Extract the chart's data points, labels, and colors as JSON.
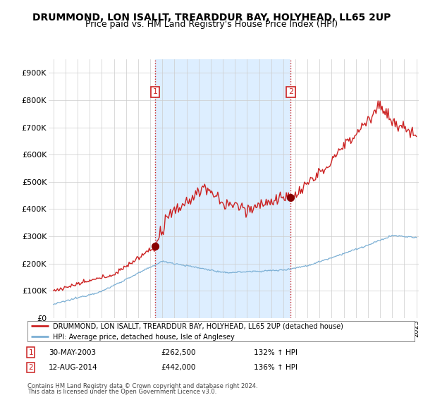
{
  "title": "DRUMMOND, LON ISALLT, TREARDDUR BAY, HOLYHEAD, LL65 2UP",
  "subtitle": "Price paid vs. HM Land Registry's House Price Index (HPI)",
  "title_fontsize": 10,
  "subtitle_fontsize": 9,
  "ylim": [
    0,
    950000
  ],
  "yticks": [
    0,
    100000,
    200000,
    300000,
    400000,
    500000,
    600000,
    700000,
    800000,
    900000
  ],
  "ytick_labels": [
    "£0",
    "£100K",
    "£200K",
    "£300K",
    "£400K",
    "£500K",
    "£600K",
    "£700K",
    "£800K",
    "£900K"
  ],
  "legend_entry1": "DRUMMOND, LON ISALLT, TREARDDUR BAY, HOLYHEAD, LL65 2UP (detached house)",
  "legend_entry2": "HPI: Average price, detached house, Isle of Anglesey",
  "annotation1_date": "30-MAY-2003",
  "annotation1_price": "£262,500",
  "annotation1_hpi": "132% ↑ HPI",
  "annotation2_date": "12-AUG-2014",
  "annotation2_price": "£442,000",
  "annotation2_hpi": "136% ↑ HPI",
  "footer1": "Contains HM Land Registry data © Crown copyright and database right 2024.",
  "footer2": "This data is licensed under the Open Government Licence v3.0.",
  "line1_color": "#cc2222",
  "line2_color": "#7bafd4",
  "shade_color": "#ddeeff",
  "annotation_box_color": "#cc2222",
  "sale1_year": 2003.41,
  "sale1_price": 262500,
  "sale2_year": 2014.62,
  "sale2_price": 442000
}
